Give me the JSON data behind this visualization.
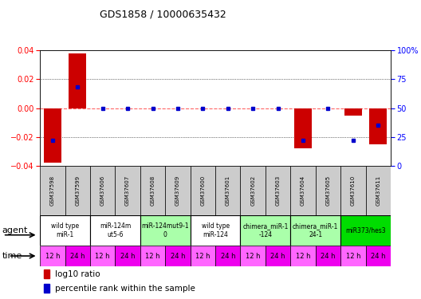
{
  "title": "GDS1858 / 10000635432",
  "samples": [
    "GSM37598",
    "GSM37599",
    "GSM37606",
    "GSM37607",
    "GSM37608",
    "GSM37609",
    "GSM37600",
    "GSM37601",
    "GSM37602",
    "GSM37603",
    "GSM37604",
    "GSM37605",
    "GSM37610",
    "GSM37611"
  ],
  "log10_ratio": [
    -0.038,
    0.038,
    0.0,
    0.0,
    0.0,
    0.0,
    0.0,
    0.0,
    0.0,
    0.0,
    -0.028,
    0.0,
    -0.005,
    -0.025
  ],
  "percentile_rank": [
    22,
    68,
    50,
    50,
    50,
    50,
    50,
    50,
    50,
    50,
    22,
    50,
    22,
    35
  ],
  "ylim": [
    -0.04,
    0.04
  ],
  "yticks_left": [
    -0.04,
    -0.02,
    0.0,
    0.02,
    0.04
  ],
  "yticks_right": [
    0,
    25,
    50,
    75,
    100
  ],
  "agent_groups": [
    {
      "label": "wild type\nmiR-1",
      "color": "#ffffff",
      "span": [
        0,
        2
      ]
    },
    {
      "label": "miR-124m\nut5-6",
      "color": "#ffffff",
      "span": [
        2,
        4
      ]
    },
    {
      "label": "miR-124mut9-1\n0",
      "color": "#aaffaa",
      "span": [
        4,
        6
      ]
    },
    {
      "label": "wild type\nmiR-124",
      "color": "#ffffff",
      "span": [
        6,
        8
      ]
    },
    {
      "label": "chimera_miR-1\n-124",
      "color": "#aaffaa",
      "span": [
        8,
        10
      ]
    },
    {
      "label": "chimera_miR-1\n24-1",
      "color": "#aaffaa",
      "span": [
        10,
        12
      ]
    },
    {
      "label": "miR373/hes3",
      "color": "#00dd00",
      "span": [
        12,
        14
      ]
    }
  ],
  "time_labels": [
    "12 h",
    "24 h",
    "12 h",
    "24 h",
    "12 h",
    "24 h",
    "12 h",
    "24 h",
    "12 h",
    "24 h",
    "12 h",
    "24 h",
    "12 h",
    "24 h"
  ],
  "time_color_12": "#ff66ff",
  "time_color_24": "#ee00ee",
  "bar_color": "#cc0000",
  "dot_color": "#0000cc",
  "zero_line_color": "#ff6666",
  "sample_bg": "#cccccc",
  "left_labels": [
    "agent",
    "time"
  ],
  "legend_items": [
    {
      "color": "#cc0000",
      "label": "log10 ratio"
    },
    {
      "color": "#0000cc",
      "label": "percentile rank within the sample"
    }
  ]
}
